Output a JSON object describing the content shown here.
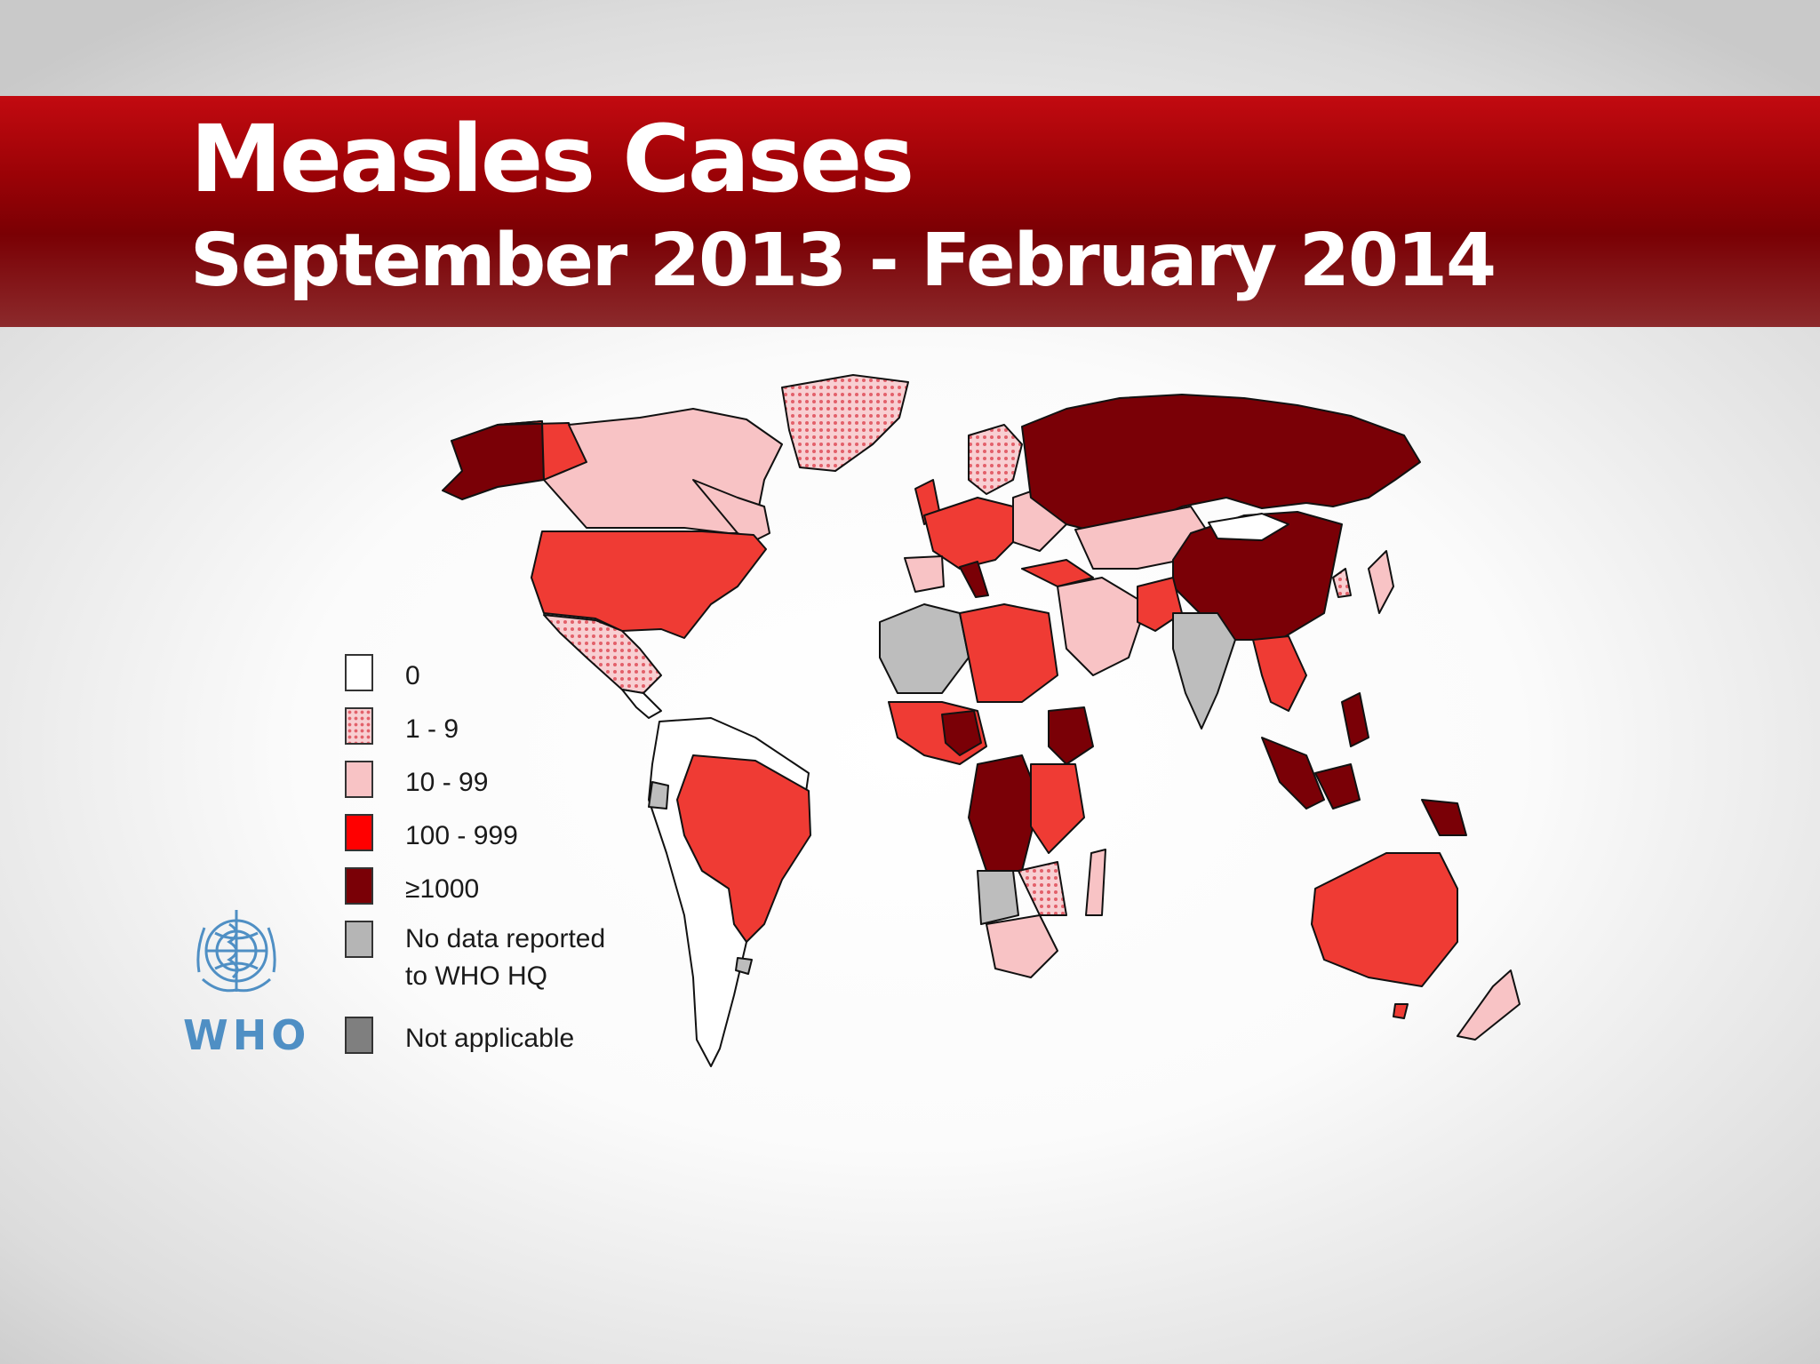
{
  "header": {
    "title": "Measles Cases",
    "subtitle": "September 2013 - February 2014"
  },
  "map": {
    "colors": {
      "0": "#ffffff",
      "1-9": "#f8c9cd",
      "10-99": "#f8c3c5",
      "100-999": "#ef3b34",
      ">=1000": "#7a0006",
      "no_data": "#bdbdbd",
      "not_applicable": "#7f7f7f"
    },
    "categories_shown": [
      "1 - 9",
      "10 - 99",
      "100 - 999",
      "≥1000",
      "No data reported to WHO HQ",
      "0"
    ]
  },
  "legend": {
    "items": [
      {
        "label": "0",
        "color": "#ffffff"
      },
      {
        "label": "1 - 9",
        "color": "#f6b8be",
        "pattern": "dotted"
      },
      {
        "label": "10 - 99",
        "color": "#f8c3c5"
      },
      {
        "label": "100 - 999",
        "color": "#ff0000"
      },
      {
        "label": "≥1000",
        "color": "#7a0006"
      },
      {
        "label": "No data reported to WHO HQ",
        "color": "#b5b5b5"
      },
      {
        "label": "Not applicable",
        "color": "#7f7f7f"
      }
    ]
  },
  "logo": {
    "text": "WHO",
    "icon": "who-emblem-icon",
    "color": "#4f8fc4"
  }
}
